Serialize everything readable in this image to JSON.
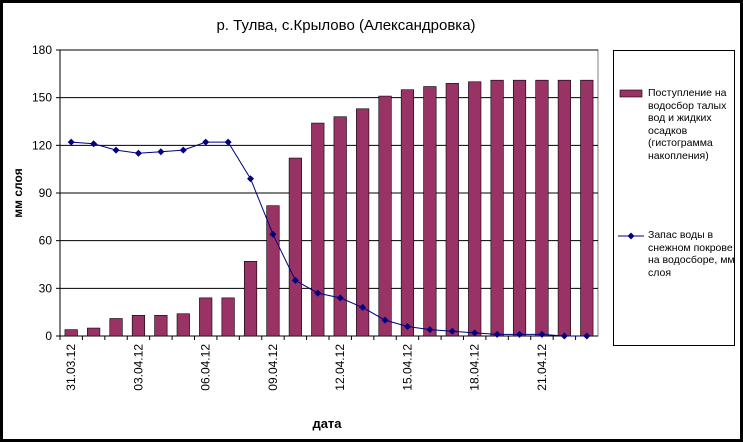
{
  "chart_data": {
    "type": "bar+line",
    "title": "р. Тулва, с.Крылово (Александровка)",
    "x_label": "дата",
    "y_label": "мм слоя",
    "categories": [
      "31.03.12",
      null,
      null,
      "03.04.12",
      null,
      null,
      "06.04.12",
      null,
      null,
      "09.04.12",
      null,
      null,
      "12.04.12",
      null,
      null,
      "15.04.12",
      null,
      null,
      "18.04.12",
      null,
      null,
      "21.04.12",
      null,
      null
    ],
    "series": [
      {
        "name": "Поступление на водосбор талых вод и жидких осадков (гистограмма накопления)",
        "type": "bar",
        "color": "#993366",
        "values": [
          4,
          5,
          11,
          13,
          13,
          14,
          24,
          24,
          47,
          82,
          112,
          134,
          138,
          143,
          151,
          155,
          157,
          159,
          160,
          161,
          161,
          161,
          161,
          161
        ]
      },
      {
        "name": "Запас воды в снежном покрове на водосборе, мм слоя",
        "type": "line",
        "color": "#000080",
        "values": [
          122,
          121,
          117,
          115,
          116,
          117,
          122,
          122,
          99,
          64,
          35,
          27,
          24,
          18,
          10,
          6,
          4,
          3,
          2,
          1,
          1,
          1,
          0,
          0
        ]
      }
    ],
    "ylim": [
      0,
      180
    ],
    "yticks": [
      0,
      30,
      60,
      90,
      120,
      150,
      180
    ],
    "grid": true
  }
}
